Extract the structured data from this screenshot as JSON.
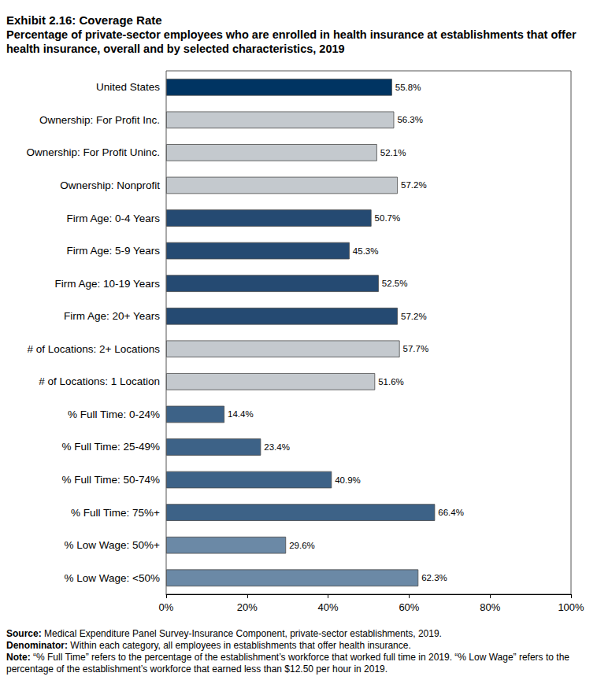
{
  "chart_data": {
    "type": "bar",
    "orientation": "horizontal",
    "title": "Exhibit 2.16: Coverage Rate",
    "subtitle": "Percentage of private-sector employees who are enrolled in health insurance at establishments that offer health insurance, overall and by selected characteristics, 2019",
    "categories": [
      "United States",
      "Ownership: For Profit Inc.",
      "Ownership: For Profit Uninc.",
      "Ownership: Nonprofit",
      "Firm Age: 0-4 Years",
      "Firm Age: 5-9 Years",
      "Firm Age: 10-19 Years",
      "Firm Age: 20+ Years",
      "# of Locations: 2+ Locations",
      "# of Locations: 1 Location",
      "% Full Time: 0-24%",
      "% Full Time: 25-49%",
      "% Full Time: 50-74%",
      "% Full Time: 75%+",
      "% Low Wage: 50%+",
      "% Low Wage: <50%"
    ],
    "values": [
      55.8,
      56.3,
      52.1,
      57.2,
      50.7,
      45.3,
      52.5,
      57.2,
      57.7,
      51.6,
      14.4,
      23.4,
      40.9,
      66.4,
      29.6,
      62.3
    ],
    "value_labels": [
      "55.8%",
      "56.3%",
      "52.1%",
      "57.2%",
      "50.7%",
      "45.3%",
      "52.5%",
      "57.2%",
      "57.7%",
      "51.6%",
      "14.4%",
      "23.4%",
      "40.9%",
      "66.4%",
      "29.6%",
      "62.3%"
    ],
    "colors": [
      "#003462",
      "#c4c9ce",
      "#c4c9ce",
      "#c4c9ce",
      "#254a72",
      "#254a72",
      "#254a72",
      "#254a72",
      "#c4c9ce",
      "#c4c9ce",
      "#3d6287",
      "#3d6287",
      "#3d6287",
      "#3d6287",
      "#6b89a6",
      "#6b89a6"
    ],
    "data_labels": true,
    "grid": false,
    "xlim": [
      0,
      100
    ],
    "xticks": [
      {
        "value": 0,
        "label": "0%"
      },
      {
        "value": 20,
        "label": "20%"
      },
      {
        "value": 40,
        "label": "40%"
      },
      {
        "value": 60,
        "label": "60%"
      },
      {
        "value": 80,
        "label": "80%"
      },
      {
        "value": 100,
        "label": "100%"
      }
    ],
    "annotations": [
      {
        "label": "Source:",
        "text": "Medical Expenditure Panel Survey-Insurance Component, private-sector establishments, 2019."
      },
      {
        "label": "Denominator:",
        "text": "Within each category, all employees in establishments that offer health insurance."
      },
      {
        "label": "Note:",
        "text": "“% Full Time” refers to the percentage of the establishment’s workforce that worked full time in 2019. “% Low Wage” refers to the percentage of the establishment’s workforce that earned less than $12.50 per hour in 2019."
      }
    ]
  }
}
